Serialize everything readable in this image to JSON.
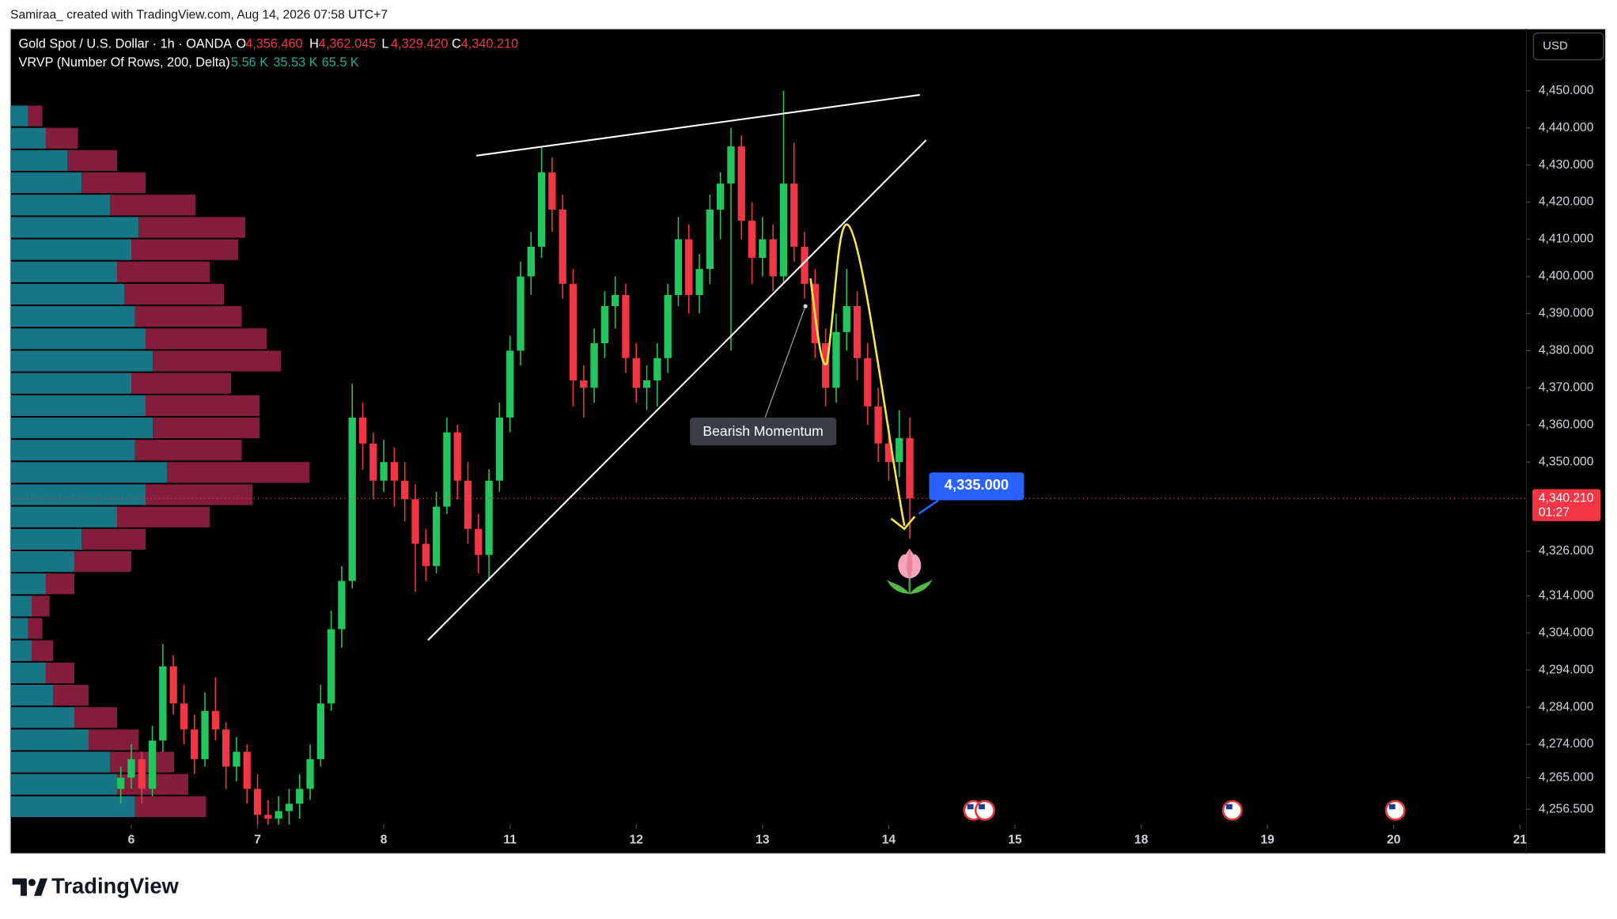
{
  "header": "Samiraa_ created with TradingView.com, Aug 14, 2026 07:58 UTC+7",
  "chart_data": {
    "type": "candlestick",
    "title": "Gold Spot / U.S. Dollar · 1h · OANDA",
    "ohlc_legend": [
      {
        "label": "O",
        "value": "4,356.460"
      },
      {
        "label": "H",
        "value": "4,362.045"
      },
      {
        "label": "L",
        "value": "4,329.420"
      },
      {
        "label": "C",
        "value": "4,340.210"
      }
    ],
    "indicator": {
      "title": "VRVP (Number Of Rows, 200, Delta)",
      "values": [
        "5.56 K",
        "35.53 K",
        "65.5 K"
      ]
    },
    "currency": "USD",
    "up_color": "#22c55e",
    "down_color": "#f23645",
    "candles": [
      [
        4262,
        4268,
        4258,
        4265
      ],
      [
        4265,
        4274,
        4262,
        4270
      ],
      [
        4270,
        4272,
        4258,
        4262
      ],
      [
        4262,
        4279,
        4260,
        4275
      ],
      [
        4275,
        4301,
        4272,
        4295
      ],
      [
        4295,
        4298,
        4282,
        4285
      ],
      [
        4285,
        4290,
        4274,
        4278
      ],
      [
        4278,
        4282,
        4266,
        4270
      ],
      [
        4270,
        4288,
        4268,
        4283
      ],
      [
        4283,
        4292,
        4275,
        4278
      ],
      [
        4278,
        4280,
        4262,
        4268
      ],
      [
        4268,
        4276,
        4264,
        4272
      ],
      [
        4272,
        4274,
        4258,
        4262
      ],
      [
        4262,
        4266,
        4252,
        4255
      ],
      [
        4255,
        4259,
        4250,
        4254
      ],
      [
        4254,
        4260,
        4250,
        4256
      ],
      [
        4256,
        4262,
        4252,
        4258
      ],
      [
        4258,
        4266,
        4254,
        4262
      ],
      [
        4262,
        4274,
        4259,
        4270
      ],
      [
        4270,
        4290,
        4268,
        4285
      ],
      [
        4285,
        4310,
        4283,
        4305
      ],
      [
        4305,
        4322,
        4300,
        4318
      ],
      [
        4318,
        4371,
        4316,
        4362
      ],
      [
        4362,
        4366,
        4348,
        4355
      ],
      [
        4355,
        4358,
        4340,
        4345
      ],
      [
        4345,
        4356,
        4342,
        4350
      ],
      [
        4350,
        4354,
        4338,
        4345
      ],
      [
        4345,
        4350,
        4334,
        4340
      ],
      [
        4340,
        4344,
        4315,
        4328
      ],
      [
        4328,
        4332,
        4318,
        4322
      ],
      [
        4322,
        4342,
        4320,
        4338
      ],
      [
        4338,
        4362,
        4336,
        4358
      ],
      [
        4358,
        4360,
        4340,
        4345
      ],
      [
        4345,
        4350,
        4328,
        4332
      ],
      [
        4332,
        4336,
        4320,
        4325
      ],
      [
        4325,
        4348,
        4318,
        4345
      ],
      [
        4345,
        4366,
        4342,
        4362
      ],
      [
        4362,
        4384,
        4358,
        4380
      ],
      [
        4380,
        4404,
        4376,
        4400
      ],
      [
        4400,
        4412,
        4395,
        4408
      ],
      [
        4408,
        4435,
        4405,
        4428
      ],
      [
        4428,
        4432,
        4412,
        4418
      ],
      [
        4418,
        4422,
        4394,
        4398
      ],
      [
        4398,
        4402,
        4365,
        4372
      ],
      [
        4372,
        4376,
        4362,
        4370
      ],
      [
        4370,
        4386,
        4366,
        4382
      ],
      [
        4382,
        4396,
        4378,
        4392
      ],
      [
        4392,
        4400,
        4386,
        4395
      ],
      [
        4395,
        4398,
        4374,
        4378
      ],
      [
        4378,
        4382,
        4366,
        4370
      ],
      [
        4370,
        4376,
        4364,
        4372
      ],
      [
        4372,
        4382,
        4365,
        4378
      ],
      [
        4378,
        4398,
        4374,
        4395
      ],
      [
        4395,
        4416,
        4392,
        4410
      ],
      [
        4410,
        4414,
        4390,
        4395
      ],
      [
        4395,
        4406,
        4390,
        4402
      ],
      [
        4402,
        4422,
        4398,
        4418
      ],
      [
        4418,
        4428,
        4410,
        4425
      ],
      [
        4425,
        4440,
        4380,
        4435
      ],
      [
        4435,
        4438,
        4410,
        4415
      ],
      [
        4415,
        4420,
        4398,
        4405
      ],
      [
        4405,
        4416,
        4400,
        4410
      ],
      [
        4410,
        4414,
        4396,
        4400
      ],
      [
        4400,
        4450,
        4398,
        4425
      ],
      [
        4425,
        4436,
        4404,
        4408
      ],
      [
        4408,
        4412,
        4394,
        4398
      ],
      [
        4398,
        4402,
        4378,
        4382
      ],
      [
        4382,
        4386,
        4365,
        4370
      ],
      [
        4370,
        4390,
        4366,
        4385
      ],
      [
        4385,
        4402,
        4380,
        4392
      ],
      [
        4392,
        4396,
        4372,
        4378
      ],
      [
        4378,
        4382,
        4360,
        4365
      ],
      [
        4365,
        4370,
        4350,
        4355
      ],
      [
        4355,
        4360,
        4345,
        4350
      ],
      [
        4350,
        4364,
        4346,
        4356.46
      ],
      [
        4356.46,
        4362.045,
        4329.42,
        4340.21
      ]
    ],
    "xlim": [
      -10.5,
      133.6
    ],
    "xticks": [
      {
        "value": 1,
        "label": "6"
      },
      {
        "value": 13,
        "label": "7"
      },
      {
        "value": 25,
        "label": "8"
      },
      {
        "value": 37,
        "label": "11"
      },
      {
        "value": 49,
        "label": "12"
      },
      {
        "value": 61,
        "label": "13"
      },
      {
        "value": 73,
        "label": "14"
      },
      {
        "value": 85,
        "label": "15"
      },
      {
        "value": 97,
        "label": "18"
      },
      {
        "value": 109,
        "label": "19"
      },
      {
        "value": 121,
        "label": "20"
      },
      {
        "value": 133,
        "label": "21"
      }
    ],
    "ylim": [
      4252.33,
      4466.66
    ],
    "yticks": [
      {
        "value": 4450,
        "label": "4,450.000"
      },
      {
        "value": 4440,
        "label": "4,440.000"
      },
      {
        "value": 4430,
        "label": "4,430.000"
      },
      {
        "value": 4420,
        "label": "4,420.000"
      },
      {
        "value": 4410,
        "label": "4,410.000"
      },
      {
        "value": 4400,
        "label": "4,400.000"
      },
      {
        "value": 4390,
        "label": "4,390.000"
      },
      {
        "value": 4380,
        "label": "4,380.000"
      },
      {
        "value": 4370,
        "label": "4,370.000"
      },
      {
        "value": 4360,
        "label": "4,360.000"
      },
      {
        "value": 4350,
        "label": "4,350.000"
      },
      {
        "value": 4326,
        "label": "4,326.000"
      },
      {
        "value": 4314,
        "label": "4,314.000"
      },
      {
        "value": 4304,
        "label": "4,304.000"
      },
      {
        "value": 4294,
        "label": "4,294.000"
      },
      {
        "value": 4284,
        "label": "4,284.000"
      },
      {
        "value": 4274,
        "label": "4,274.000"
      },
      {
        "value": 4265,
        "label": "4,265.000"
      },
      {
        "value": 4256.5,
        "label": "4,256.500"
      }
    ],
    "grid": false,
    "last_price": {
      "value": 4340.21,
      "label": "4,340.210",
      "countdown": "01:27"
    },
    "annotation": "Bearish Momentum",
    "target": {
      "value": 4335,
      "label": "4,335.000"
    },
    "volume_profile": {
      "up_color": "#1b8a9c",
      "down_color": "#b0264f",
      "levels": [
        4254,
        4260,
        4266,
        4272,
        4278,
        4284,
        4290,
        4296,
        4302,
        4308,
        4314,
        4320,
        4326,
        4332,
        4338,
        4344,
        4350,
        4356,
        4362,
        4368,
        4374,
        4380,
        4386,
        4392,
        4398,
        4404,
        4410,
        4416,
        4422,
        4428,
        4434,
        4440
      ],
      "up": [
        35,
        30,
        28,
        22,
        18,
        12,
        10,
        6,
        5,
        6,
        10,
        18,
        20,
        30,
        38,
        44,
        35,
        40,
        38,
        34,
        40,
        38,
        35,
        32,
        30,
        34,
        36,
        28,
        20,
        16,
        10,
        5
      ],
      "down": [
        20,
        20,
        18,
        14,
        12,
        10,
        8,
        6,
        4,
        5,
        8,
        16,
        18,
        26,
        30,
        40,
        30,
        30,
        32,
        28,
        36,
        34,
        30,
        28,
        26,
        30,
        30,
        24,
        18,
        14,
        9,
        4
      ]
    }
  },
  "footer": {
    "logo": "TradingView"
  }
}
